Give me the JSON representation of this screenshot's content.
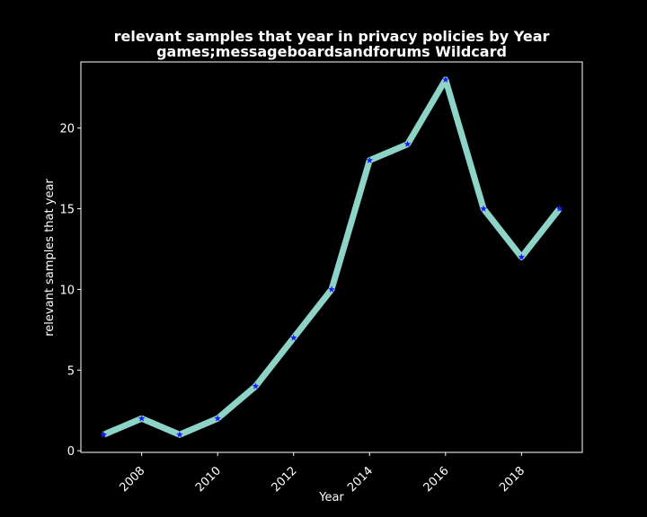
{
  "chart_data": {
    "type": "line",
    "title_line1": "relevant samples that year in privacy policies by Year",
    "title_line2": "games;messageboardsandforums Wildcard",
    "xlabel": "Year",
    "ylabel": "relevant samples that year",
    "x": [
      2007,
      2008,
      2009,
      2010,
      2011,
      2012,
      2013,
      2014,
      2015,
      2016,
      2017,
      2018,
      2019
    ],
    "y": [
      1,
      2,
      1,
      2,
      4,
      7,
      10,
      18,
      19,
      23,
      15,
      12,
      15
    ],
    "xlim": [
      2006.4,
      2019.6
    ],
    "ylim": [
      -0.1,
      24.1
    ],
    "xticks": [
      2008,
      2010,
      2012,
      2014,
      2016,
      2018
    ],
    "yticks": [
      0,
      5,
      10,
      15,
      20
    ],
    "line_color": "#8dd3c7",
    "marker_color": "#1a1aff",
    "marker": "star",
    "background": "#000000",
    "axis_color": "#ffffff",
    "grid": false,
    "legend": "none"
  }
}
